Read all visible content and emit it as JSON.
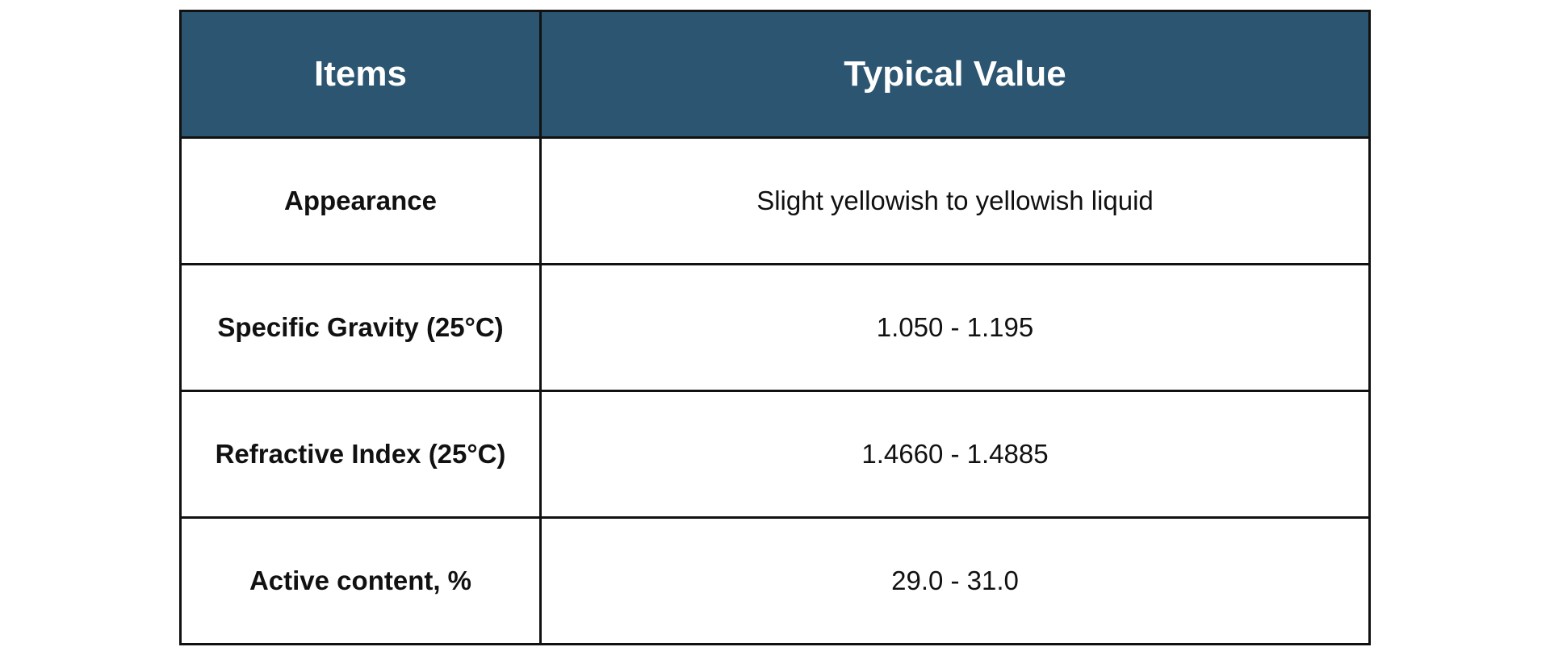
{
  "table": {
    "header": [
      "Items",
      "Typical Value"
    ],
    "rows": [
      [
        "Appearance",
        "Slight yellowish to yellowish liquid"
      ],
      [
        "Specific Gravity (25°C)",
        "1.050 - 1.195"
      ],
      [
        "Refractive Index (25°C)",
        "1.4660 - 1.4885"
      ],
      [
        "Active content, %",
        "29.0 - 31.0"
      ]
    ]
  }
}
